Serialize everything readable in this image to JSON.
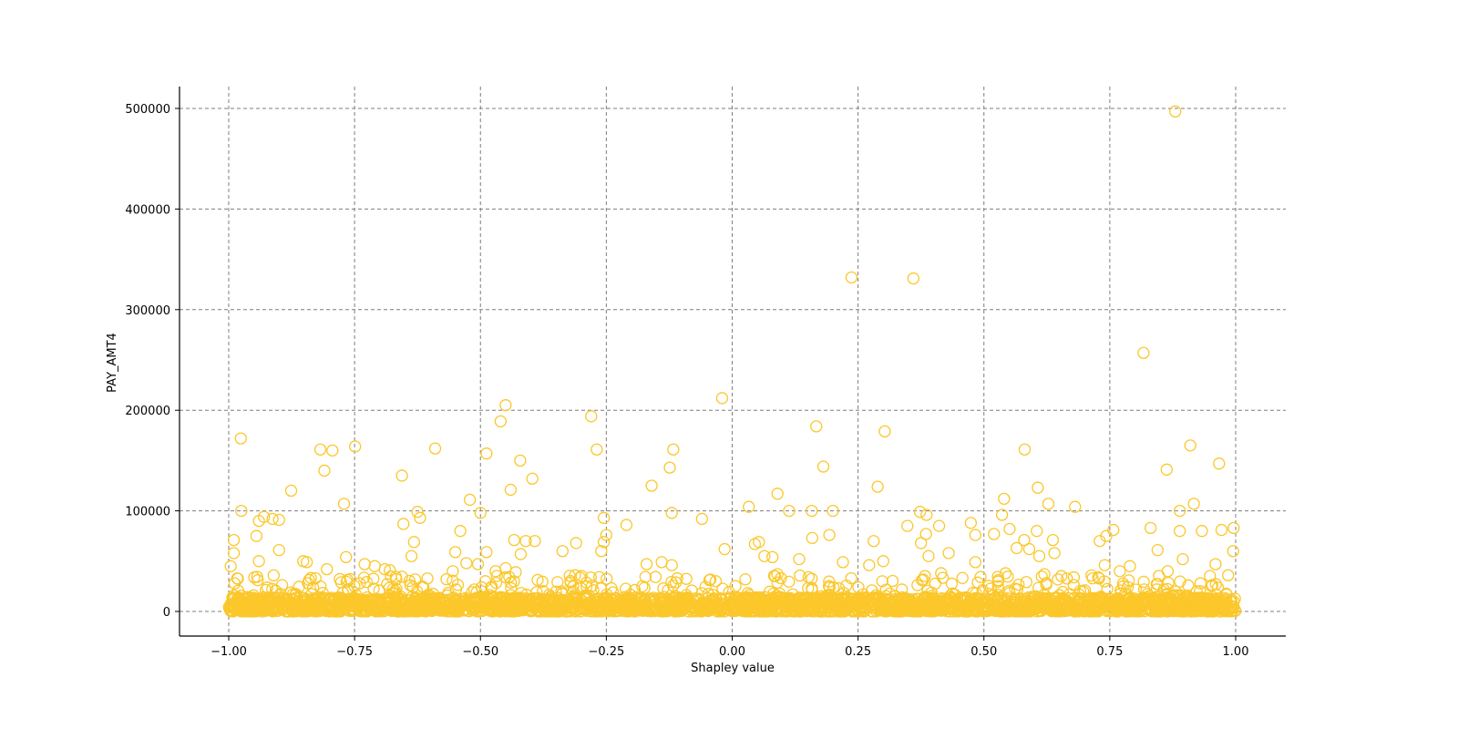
{
  "chart_data": {
    "type": "scatter",
    "title": "",
    "xlabel": "Shapley value",
    "ylabel": "PAY_AMT4",
    "xlim": [
      -1.1,
      1.1
    ],
    "ylim": [
      -25000,
      525000
    ],
    "xticks": [
      -1.0,
      -0.75,
      -0.5,
      -0.25,
      0.0,
      0.25,
      0.5,
      0.75,
      1.0
    ],
    "xtick_labels": [
      "−1.00",
      "−0.75",
      "−0.50",
      "−0.25",
      "0.00",
      "0.25",
      "0.50",
      "0.75",
      "1.00"
    ],
    "yticks": [
      0,
      100000,
      200000,
      300000,
      400000,
      500000
    ],
    "ytick_labels": [
      "0",
      "100000",
      "200000",
      "300000",
      "400000",
      "500000"
    ],
    "grid": true,
    "grid_style": "dashed",
    "marker": "hollow-circle",
    "marker_color": "#fbc72a",
    "legend": null,
    "note": "Dense band of points from x=-1.00 to 1.00 with y between 0 and ~15000; outliers listed below",
    "dense_band": {
      "x_range": [
        -1.0,
        1.0
      ],
      "y_range": [
        0,
        15000
      ]
    },
    "outliers": [
      {
        "x": 0.88,
        "y": 497000
      },
      {
        "x": 0.237,
        "y": 332000
      },
      {
        "x": 0.36,
        "y": 331000
      },
      {
        "x": 0.817,
        "y": 257000
      },
      {
        "x": -0.02,
        "y": 212000
      },
      {
        "x": -0.45,
        "y": 205000
      },
      {
        "x": -0.28,
        "y": 194000
      },
      {
        "x": -0.46,
        "y": 189000
      },
      {
        "x": 0.167,
        "y": 184000
      },
      {
        "x": 0.303,
        "y": 179000
      },
      {
        "x": -0.976,
        "y": 172000
      },
      {
        "x": 0.91,
        "y": 165000
      },
      {
        "x": -0.749,
        "y": 164000
      },
      {
        "x": -0.818,
        "y": 161000
      },
      {
        "x": -0.794,
        "y": 160000
      },
      {
        "x": -0.59,
        "y": 162000
      },
      {
        "x": -0.269,
        "y": 161000
      },
      {
        "x": -0.117,
        "y": 161000
      },
      {
        "x": 0.581,
        "y": 161000
      },
      {
        "x": -0.488,
        "y": 157000
      },
      {
        "x": -0.421,
        "y": 150000
      },
      {
        "x": 0.967,
        "y": 147000
      },
      {
        "x": 0.181,
        "y": 144000
      },
      {
        "x": -0.124,
        "y": 143000
      },
      {
        "x": 0.863,
        "y": 141000
      },
      {
        "x": -0.81,
        "y": 140000
      },
      {
        "x": -0.656,
        "y": 135000
      },
      {
        "x": -0.397,
        "y": 132000
      },
      {
        "x": -0.16,
        "y": 125000
      },
      {
        "x": 0.289,
        "y": 124000
      },
      {
        "x": 0.607,
        "y": 123000
      },
      {
        "x": -0.44,
        "y": 121000
      },
      {
        "x": -0.876,
        "y": 120000
      },
      {
        "x": 0.09,
        "y": 117000
      },
      {
        "x": -0.521,
        "y": 111000
      },
      {
        "x": 0.54,
        "y": 112000
      },
      {
        "x": 0.917,
        "y": 107000
      },
      {
        "x": -0.771,
        "y": 107000
      },
      {
        "x": 0.628,
        "y": 107000
      },
      {
        "x": 0.681,
        "y": 104000
      },
      {
        "x": 0.033,
        "y": 104000
      },
      {
        "x": -0.975,
        "y": 100000
      },
      {
        "x": -0.625,
        "y": 99000
      },
      {
        "x": -0.12,
        "y": 98000
      },
      {
        "x": -0.5,
        "y": 98000
      },
      {
        "x": 0.2,
        "y": 100000
      },
      {
        "x": 0.373,
        "y": 99000
      },
      {
        "x": 0.158,
        "y": 100000
      },
      {
        "x": 0.113,
        "y": 100000
      },
      {
        "x": 0.889,
        "y": 100000
      },
      {
        "x": 0.386,
        "y": 96000
      },
      {
        "x": 0.536,
        "y": 96000
      },
      {
        "x": -0.93,
        "y": 94000
      },
      {
        "x": -0.62,
        "y": 93000
      },
      {
        "x": -0.913,
        "y": 92000
      },
      {
        "x": -0.255,
        "y": 93000
      },
      {
        "x": -0.06,
        "y": 92000
      },
      {
        "x": 0.348,
        "y": 85000
      },
      {
        "x": -0.94,
        "y": 90000
      },
      {
        "x": -0.9,
        "y": 91000
      },
      {
        "x": -0.21,
        "y": 86000
      },
      {
        "x": 0.474,
        "y": 88000
      },
      {
        "x": 0.411,
        "y": 85000
      },
      {
        "x": -0.653,
        "y": 87000
      },
      {
        "x": 0.831,
        "y": 83000
      },
      {
        "x": 0.996,
        "y": 83000
      },
      {
        "x": 0.551,
        "y": 82000
      },
      {
        "x": 0.605,
        "y": 80000
      },
      {
        "x": 0.757,
        "y": 81000
      },
      {
        "x": 0.889,
        "y": 80000
      },
      {
        "x": 0.933,
        "y": 80000
      },
      {
        "x": 0.972,
        "y": 81000
      },
      {
        "x": -0.54,
        "y": 80000
      },
      {
        "x": -0.945,
        "y": 75000
      },
      {
        "x": 0.193,
        "y": 76000
      },
      {
        "x": 0.385,
        "y": 77000
      },
      {
        "x": 0.483,
        "y": 76000
      },
      {
        "x": 0.52,
        "y": 77000
      },
      {
        "x": -0.25,
        "y": 76000
      },
      {
        "x": 0.743,
        "y": 75000
      },
      {
        "x": 0.159,
        "y": 73000
      },
      {
        "x": -0.99,
        "y": 71000
      },
      {
        "x": -0.433,
        "y": 71000
      },
      {
        "x": -0.41,
        "y": 70000
      },
      {
        "x": 0.58,
        "y": 71000
      },
      {
        "x": 0.281,
        "y": 70000
      },
      {
        "x": 0.637,
        "y": 71000
      },
      {
        "x": 0.73,
        "y": 70000
      },
      {
        "x": -0.392,
        "y": 70000
      },
      {
        "x": -0.255,
        "y": 69000
      },
      {
        "x": -0.31,
        "y": 68000
      },
      {
        "x": 0.053,
        "y": 69000
      },
      {
        "x": 0.045,
        "y": 67000
      },
      {
        "x": -0.632,
        "y": 69000
      },
      {
        "x": -0.99,
        "y": 58000
      },
      {
        "x": -0.996,
        "y": 45000
      },
      {
        "x": -0.9,
        "y": 61000
      },
      {
        "x": -0.26,
        "y": 60000
      },
      {
        "x": -0.015,
        "y": 62000
      },
      {
        "x": 0.375,
        "y": 68000
      },
      {
        "x": 0.59,
        "y": 62000
      },
      {
        "x": 0.61,
        "y": 55000
      },
      {
        "x": 0.845,
        "y": 61000
      },
      {
        "x": 0.995,
        "y": 60000
      },
      {
        "x": -0.488,
        "y": 59000
      },
      {
        "x": -0.42,
        "y": 57000
      },
      {
        "x": -0.55,
        "y": 59000
      },
      {
        "x": -0.337,
        "y": 60000
      },
      {
        "x": 0.565,
        "y": 63000
      },
      {
        "x": 0.64,
        "y": 58000
      },
      {
        "x": 0.43,
        "y": 58000
      },
      {
        "x": 0.064,
        "y": 55000
      },
      {
        "x": 0.08,
        "y": 54000
      },
      {
        "x": 0.133,
        "y": 52000
      },
      {
        "x": 0.39,
        "y": 55000
      },
      {
        "x": -0.767,
        "y": 54000
      },
      {
        "x": -0.637,
        "y": 55000
      },
      {
        "x": 0.895,
        "y": 52000
      },
      {
        "x": -0.94,
        "y": 50000
      },
      {
        "x": -0.852,
        "y": 50000
      },
      {
        "x": -0.845,
        "y": 49000
      },
      {
        "x": -0.528,
        "y": 48000
      },
      {
        "x": -0.505,
        "y": 47000
      },
      {
        "x": -0.73,
        "y": 47000
      },
      {
        "x": -0.71,
        "y": 45000
      },
      {
        "x": -0.17,
        "y": 47000
      },
      {
        "x": -0.14,
        "y": 49000
      },
      {
        "x": -0.12,
        "y": 46000
      },
      {
        "x": 0.22,
        "y": 49000
      },
      {
        "x": 0.272,
        "y": 46000
      },
      {
        "x": 0.3,
        "y": 50000
      },
      {
        "x": 0.483,
        "y": 49000
      },
      {
        "x": 0.74,
        "y": 46000
      },
      {
        "x": 0.79,
        "y": 45000
      },
      {
        "x": 0.96,
        "y": 47000
      },
      {
        "x": -0.45,
        "y": 43000
      },
      {
        "x": -0.47,
        "y": 40000
      },
      {
        "x": -0.43,
        "y": 39000
      },
      {
        "x": -0.69,
        "y": 42000
      },
      {
        "x": -0.805,
        "y": 42000
      },
      {
        "x": -0.68,
        "y": 41000
      },
      {
        "x": -0.555,
        "y": 40000
      },
      {
        "x": 0.09,
        "y": 37000
      },
      {
        "x": 0.543,
        "y": 38000
      },
      {
        "x": 0.415,
        "y": 38000
      },
      {
        "x": 0.62,
        "y": 37000
      },
      {
        "x": 0.77,
        "y": 40000
      },
      {
        "x": 0.865,
        "y": 40000
      },
      {
        "x": 0.985,
        "y": 36000
      }
    ]
  }
}
